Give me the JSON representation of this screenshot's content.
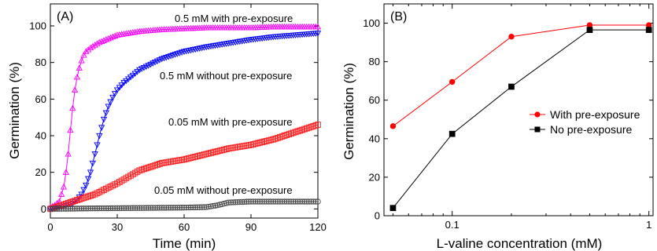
{
  "chart_data": [
    {
      "type": "scatter",
      "panel_label": "(A)",
      "xlabel": "Time (min)",
      "ylabel": "Germination (%)",
      "xlim": [
        0,
        120
      ],
      "ylim": [
        -5,
        112
      ],
      "xticks": [
        0,
        30,
        60,
        90,
        120
      ],
      "yticks": [
        0,
        20,
        40,
        60,
        80,
        100
      ],
      "grid": false,
      "legend": "inline annotations",
      "series": [
        {
          "name": "0.5 mM with pre-exposure",
          "color": "#ff00ff",
          "marker": "triangle-up",
          "x": [
            0,
            2,
            4,
            6,
            7,
            8,
            9,
            10,
            11,
            12,
            13,
            14,
            15,
            16,
            18,
            20,
            22,
            24,
            26,
            28,
            30,
            35,
            40,
            45,
            50,
            60,
            70,
            80,
            90,
            100,
            110,
            120
          ],
          "y": [
            1,
            2,
            4,
            12,
            20,
            30,
            43,
            55,
            65,
            72,
            77,
            81,
            84,
            86,
            88,
            89.5,
            91,
            92,
            93,
            94,
            95,
            96,
            97,
            97.5,
            98,
            98.5,
            99,
            99,
            99,
            99.5,
            99.5,
            99.5
          ]
        },
        {
          "name": "0.5 mM without pre-exposure",
          "color": "#0000ff",
          "marker": "triangle-down",
          "x": [
            0,
            5,
            10,
            12,
            14,
            16,
            18,
            20,
            22,
            24,
            26,
            28,
            30,
            33,
            36,
            40,
            45,
            50,
            55,
            60,
            70,
            80,
            90,
            100,
            110,
            120
          ],
          "y": [
            0,
            1,
            3,
            5,
            8,
            13,
            20,
            30,
            40,
            49,
            56,
            61,
            65,
            69,
            72,
            76,
            79,
            82,
            84,
            86,
            88.5,
            90.5,
            92.5,
            94,
            95,
            96
          ]
        },
        {
          "name": "0.05 mM with pre-exposure",
          "color": "#ff2222",
          "marker": "square",
          "x": [
            0,
            10,
            20,
            30,
            40,
            50,
            60,
            70,
            80,
            90,
            100,
            110,
            120
          ],
          "y": [
            0,
            4,
            8,
            14,
            21,
            25,
            27,
            30,
            33,
            35,
            38,
            42,
            46
          ]
        },
        {
          "name": "0.05 mM without pre-exposure",
          "color": "#444444",
          "marker": "circle",
          "x": [
            0,
            20,
            40,
            60,
            70,
            75,
            80,
            90,
            100,
            110,
            120
          ],
          "y": [
            0,
            0.3,
            0.5,
            0.7,
            1,
            2,
            3.5,
            4,
            4,
            4,
            4
          ]
        }
      ]
    },
    {
      "type": "line",
      "panel_label": "(B)",
      "xlabel": "L-valine concentration (mM)",
      "ylabel": "Germination (%)",
      "xscale": "log",
      "xlim": [
        0.045,
        1.05
      ],
      "ylim": [
        0,
        110
      ],
      "xticks": [
        0.1,
        1
      ],
      "xtick_labels": [
        "0.1",
        "1"
      ],
      "yticks": [
        0,
        20,
        40,
        60,
        80,
        100
      ],
      "grid": false,
      "legend": "right-middle",
      "x": [
        0.05,
        0.1,
        0.2,
        0.5,
        1
      ],
      "series": [
        {
          "name": "With pre-exposure",
          "color": "#ff0000",
          "marker": "circle",
          "values": [
            46.5,
            69.5,
            93,
            99,
            99
          ]
        },
        {
          "name": "No pre-exposure",
          "color": "#000000",
          "marker": "square",
          "values": [
            4,
            42.5,
            67,
            96.5,
            96.5
          ]
        }
      ]
    }
  ]
}
